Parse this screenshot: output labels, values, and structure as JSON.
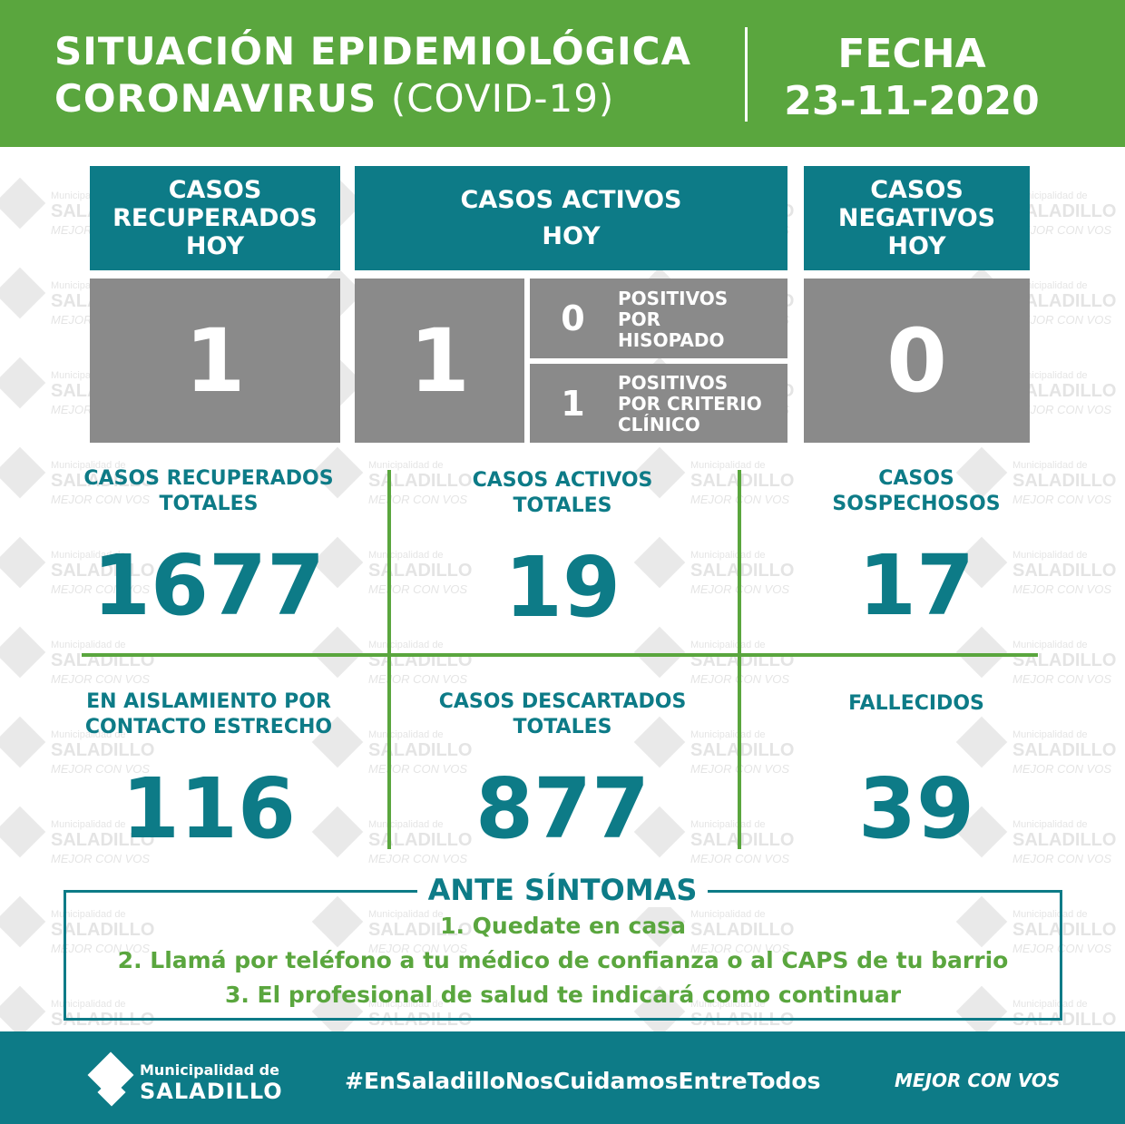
{
  "header": {
    "title_line1": "SITUACIÓN EPIDEMIOLÓGICA",
    "title_line2_bold": "CORONAVIRUS",
    "title_line2_light": "(COVID-19)",
    "fecha_label": "FECHA",
    "fecha_value": "23-11-2020"
  },
  "top_boxes": {
    "recuperados_hoy": {
      "label_l1": "CASOS",
      "label_l2": "RECUPERADOS",
      "label_l3": "HOY",
      "value": "1"
    },
    "activos_hoy": {
      "label_l1": "CASOS ACTIVOS",
      "label_l2": "HOY",
      "value": "1",
      "hisopado": {
        "value": "0",
        "l1": "POSITIVOS",
        "l2": "POR",
        "l3": "HISOPADO"
      },
      "criterio": {
        "value": "1",
        "l1": "POSITIVOS",
        "l2": "POR CRITERIO",
        "l3": "CLÍNICO"
      }
    },
    "negativos_hoy": {
      "label_l1": "CASOS",
      "label_l2": "NEGATIVOS",
      "label_l3": "HOY",
      "value": "0"
    }
  },
  "stats": {
    "recuperados_totales": {
      "l1": "CASOS RECUPERADOS",
      "l2": "TOTALES",
      "value": "1677"
    },
    "activos_totales": {
      "l1": "CASOS ACTIVOS",
      "l2": "TOTALES",
      "value": "19"
    },
    "sospechosos": {
      "l1": "CASOS",
      "l2": "SOSPECHOSOS",
      "value": "17"
    },
    "aislamiento": {
      "l1": "EN AISLAMIENTO POR",
      "l2": "CONTACTO ESTRECHO",
      "value": "116"
    },
    "descartados": {
      "l1": "CASOS DESCARTADOS",
      "l2": "TOTALES",
      "value": "877"
    },
    "fallecidos": {
      "l1": "FALLECIDOS",
      "value": "39"
    }
  },
  "symptoms": {
    "title": "ANTE SÍNTOMAS",
    "step1": "1. Quedate en casa",
    "step2": "2. Llamá por teléfono a tu médico de confianza o al CAPS de tu barrio",
    "step3": "3. El profesional de salud te indicará como continuar"
  },
  "watermark": {
    "muni": "Municipalidad de",
    "name": "SALADILLO",
    "tagline": "MEJOR CON VOS"
  },
  "footer": {
    "muni_line1": "Municipalidad de",
    "muni_line2": "SALADILLO",
    "hashtag": "#EnSaladilloNosCuidamosEntreTodos",
    "tagline": "MEJOR CON VOS"
  },
  "colors": {
    "green": "#5aa63e",
    "teal": "#0d7b87",
    "gray": "#8a8a8a"
  }
}
